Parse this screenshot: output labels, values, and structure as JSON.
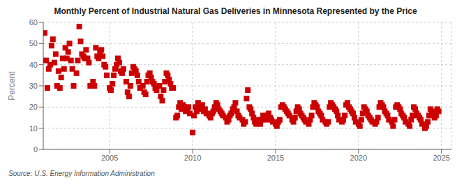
{
  "chart_data": {
    "type": "scatter",
    "title": "Monthly Percent of Industrial Natural Gas Deliveries in Minnesota Represented by the Price",
    "ylabel": "Percent",
    "annotations": [
      "Source: U.S. Energy Information Administration"
    ],
    "color": "#CC0000",
    "marker": "square",
    "grid": true,
    "xlim": [
      2001.0,
      2025.6
    ],
    "xticks": [
      2005,
      2010,
      2015,
      2020,
      2025
    ],
    "ylim": [
      0,
      60
    ],
    "yticks": [
      0,
      10,
      20,
      30,
      40,
      50,
      60
    ],
    "x": [
      2001.08,
      2001.17,
      2001.25,
      2001.33,
      2001.42,
      2001.5,
      2001.58,
      2001.67,
      2001.75,
      2001.83,
      2001.92,
      2002.0,
      2002.08,
      2002.17,
      2002.25,
      2002.33,
      2002.42,
      2002.5,
      2002.58,
      2002.67,
      2002.75,
      2002.83,
      2003.0,
      2003.08,
      2003.17,
      2003.25,
      2003.33,
      2003.42,
      2003.5,
      2003.58,
      2003.67,
      2003.75,
      2003.83,
      2004.0,
      2004.08,
      2004.17,
      2004.25,
      2004.33,
      2004.42,
      2004.5,
      2004.58,
      2004.67,
      2004.75,
      2004.83,
      2005.0,
      2005.08,
      2005.17,
      2005.25,
      2005.33,
      2005.42,
      2005.5,
      2005.58,
      2005.67,
      2005.75,
      2005.83,
      2006.0,
      2006.08,
      2006.17,
      2006.25,
      2006.33,
      2006.42,
      2006.5,
      2006.58,
      2006.67,
      2006.75,
      2006.83,
      2007.0,
      2007.08,
      2007.17,
      2007.25,
      2007.33,
      2007.42,
      2007.5,
      2007.58,
      2007.67,
      2007.75,
      2007.83,
      2008.0,
      2008.08,
      2008.17,
      2008.25,
      2008.33,
      2008.42,
      2008.5,
      2008.58,
      2008.67,
      2008.75,
      2008.83,
      2009.0,
      2009.08,
      2009.17,
      2009.25,
      2009.33,
      2009.42,
      2009.5,
      2009.58,
      2009.67,
      2009.75,
      2009.83,
      2010.0,
      2010.08,
      2010.17,
      2010.25,
      2010.33,
      2010.42,
      2010.5,
      2010.58,
      2010.67,
      2010.75,
      2010.83,
      2011.0,
      2011.08,
      2011.17,
      2011.25,
      2011.33,
      2011.42,
      2011.5,
      2011.58,
      2011.67,
      2011.75,
      2011.83,
      2012.0,
      2012.08,
      2012.17,
      2012.25,
      2012.33,
      2012.42,
      2012.5,
      2012.58,
      2012.67,
      2012.75,
      2012.83,
      2013.0,
      2013.08,
      2013.17,
      2013.25,
      2013.33,
      2013.42,
      2013.5,
      2013.58,
      2013.67,
      2013.75,
      2013.83,
      2014.0,
      2014.08,
      2014.17,
      2014.25,
      2014.33,
      2014.42,
      2014.5,
      2014.58,
      2014.67,
      2014.75,
      2014.83,
      2015.0,
      2015.08,
      2015.17,
      2015.25,
      2015.33,
      2015.42,
      2015.5,
      2015.58,
      2015.67,
      2015.75,
      2015.83,
      2016.0,
      2016.08,
      2016.17,
      2016.25,
      2016.33,
      2016.42,
      2016.5,
      2016.58,
      2016.67,
      2016.75,
      2016.83,
      2017.0,
      2017.08,
      2017.17,
      2017.25,
      2017.33,
      2017.42,
      2017.5,
      2017.58,
      2017.67,
      2017.75,
      2017.83,
      2018.0,
      2018.08,
      2018.17,
      2018.25,
      2018.33,
      2018.42,
      2018.5,
      2018.58,
      2018.67,
      2018.75,
      2018.83,
      2019.0,
      2019.08,
      2019.17,
      2019.25,
      2019.33,
      2019.42,
      2019.5,
      2019.58,
      2019.67,
      2019.75,
      2019.83,
      2020.0,
      2020.08,
      2020.17,
      2020.25,
      2020.33,
      2020.42,
      2020.5,
      2020.58,
      2020.67,
      2020.75,
      2020.83,
      2021.0,
      2021.08,
      2021.17,
      2021.25,
      2021.33,
      2021.42,
      2021.5,
      2021.58,
      2021.67,
      2021.75,
      2021.83,
      2022.0,
      2022.08,
      2022.17,
      2022.25,
      2022.33,
      2022.42,
      2022.5,
      2022.58,
      2022.67,
      2022.75,
      2022.83,
      2023.0,
      2023.08,
      2023.17,
      2023.25,
      2023.33,
      2023.42,
      2023.5,
      2023.58,
      2023.67,
      2023.75,
      2023.83,
      2024.0,
      2024.08,
      2024.17,
      2024.25,
      2024.33,
      2024.42,
      2024.5,
      2024.58,
      2024.67,
      2024.75,
      2024.83
    ],
    "values": [
      55,
      42,
      29,
      38,
      40,
      49,
      52,
      41,
      45,
      30,
      37,
      29,
      34,
      43,
      38,
      48,
      43,
      46,
      50,
      42,
      38,
      30,
      36,
      42,
      58,
      51,
      45,
      44,
      43,
      47,
      43,
      41,
      30,
      32,
      30,
      48,
      44,
      43,
      46,
      47,
      44,
      40,
      39,
      35,
      29,
      28,
      31,
      35,
      38,
      40,
      43,
      41,
      37,
      36,
      38,
      32,
      27,
      25,
      30,
      36,
      39,
      38,
      37,
      35,
      32,
      29,
      30,
      27,
      26,
      32,
      35,
      36,
      34,
      32,
      31,
      29,
      28,
      30,
      25,
      23,
      28,
      32,
      36,
      35,
      33,
      31,
      29,
      29,
      15,
      16,
      20,
      22,
      19,
      21,
      20,
      18,
      19,
      20,
      17,
      8,
      16,
      20,
      18,
      22,
      20,
      19,
      21,
      18,
      19,
      17,
      16,
      15,
      17,
      18,
      20,
      22,
      21,
      19,
      18,
      17,
      16,
      15,
      13,
      14,
      16,
      17,
      19,
      20,
      22,
      18,
      16,
      15,
      14,
      12,
      13,
      24,
      28,
      20,
      19,
      17,
      15,
      13,
      12,
      14,
      12,
      14,
      16,
      15,
      14,
      16,
      17,
      15,
      14,
      13,
      12,
      11,
      13,
      14,
      20,
      21,
      20,
      19,
      18,
      17,
      16,
      14,
      13,
      15,
      18,
      20,
      19,
      17,
      16,
      15,
      14,
      13,
      12,
      14,
      16,
      20,
      22,
      21,
      20,
      18,
      17,
      16,
      14,
      13,
      12,
      13,
      20,
      22,
      21,
      20,
      19,
      18,
      16,
      14,
      13,
      14,
      16,
      21,
      22,
      20,
      19,
      18,
      17,
      15,
      13,
      12,
      11,
      14,
      17,
      20,
      19,
      18,
      16,
      15,
      14,
      13,
      12,
      13,
      15,
      20,
      22,
      21,
      20,
      18,
      17,
      16,
      14,
      13,
      11,
      14,
      20,
      21,
      20,
      19,
      17,
      16,
      15,
      13,
      12,
      11,
      14,
      16,
      20,
      19,
      17,
      16,
      15,
      14,
      12,
      10,
      11,
      13,
      16,
      19,
      18,
      17,
      15,
      16,
      19,
      18
    ]
  }
}
